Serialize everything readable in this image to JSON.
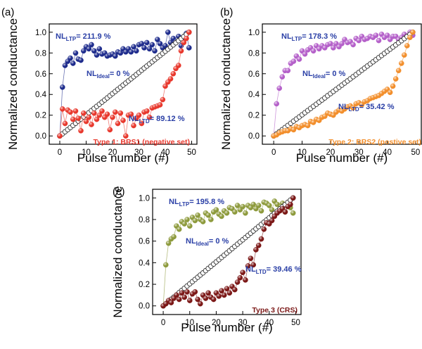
{
  "chart_data": [
    {
      "type": "scatter",
      "panel_label": "(a)",
      "xlabel": "Pulse number (#)",
      "ylabel": "Normalized conductance",
      "xlim": [
        -4,
        52
      ],
      "ylim": [
        -0.08,
        1.08
      ],
      "xticks": [
        0,
        10,
        20,
        30,
        40,
        50
      ],
      "yticks": [
        0.0,
        0.2,
        0.4,
        0.6,
        0.8,
        1.0
      ],
      "ytick_labels": [
        "0.0",
        "0.2",
        "0.4",
        "0.6",
        "0.8",
        "1.0"
      ],
      "grid": false,
      "legend": "none",
      "annotations": {
        "ltp": {
          "prefix": "NL",
          "sub": "LTP",
          "value": "= 211.9 %"
        },
        "ideal": {
          "prefix": "NL",
          "sub": "Ideal",
          "value": "= 0 %"
        },
        "ltd": {
          "prefix": "NL",
          "sub": "LTD",
          "value": "= 89.12 %"
        },
        "type_label": "Type 1: BRS1 (negative set)"
      },
      "series": [
        {
          "key": "ltp",
          "color": "#1d2b8c",
          "x": [
            0,
            1,
            2,
            3,
            4,
            5,
            6,
            7,
            8,
            9,
            10,
            11,
            12,
            13,
            14,
            15,
            16,
            17,
            18,
            19,
            20,
            21,
            22,
            23,
            24,
            25,
            26,
            27,
            28,
            29,
            30,
            31,
            32,
            33,
            34,
            35,
            36,
            37,
            38,
            39,
            40,
            41,
            42,
            43,
            44,
            45,
            46,
            47,
            48,
            49
          ],
          "values": [
            0.0,
            0.47,
            0.68,
            0.72,
            0.75,
            0.7,
            0.8,
            0.74,
            0.73,
            0.82,
            0.86,
            0.84,
            0.88,
            0.82,
            0.78,
            0.84,
            0.79,
            0.8,
            0.77,
            0.78,
            0.79,
            0.77,
            0.81,
            0.8,
            0.84,
            0.81,
            0.84,
            0.81,
            0.86,
            0.82,
            0.88,
            0.89,
            0.85,
            0.9,
            0.84,
            0.88,
            0.82,
            0.93,
            0.89,
            0.85,
            0.87,
            1.0,
            0.9,
            0.94,
            0.91,
            0.96,
            0.87,
            0.93,
            0.99,
            0.85
          ]
        },
        {
          "key": "ideal",
          "color": "#333333",
          "x": [
            0,
            1,
            2,
            3,
            4,
            5,
            6,
            7,
            8,
            9,
            10,
            11,
            12,
            13,
            14,
            15,
            16,
            17,
            18,
            19,
            20,
            21,
            22,
            23,
            24,
            25,
            26,
            27,
            28,
            29,
            30,
            31,
            32,
            33,
            34,
            35,
            36,
            37,
            38,
            39,
            40,
            41,
            42,
            43,
            44,
            45,
            46,
            47,
            48,
            49
          ],
          "values": [
            0.0,
            0.0204,
            0.0408,
            0.0612,
            0.0816,
            0.102,
            0.1224,
            0.1429,
            0.1633,
            0.1837,
            0.2041,
            0.2245,
            0.2449,
            0.2653,
            0.2857,
            0.3061,
            0.3265,
            0.3469,
            0.3673,
            0.3878,
            0.4082,
            0.4286,
            0.449,
            0.4694,
            0.4898,
            0.5102,
            0.5306,
            0.551,
            0.5714,
            0.5918,
            0.6122,
            0.6327,
            0.6531,
            0.6735,
            0.6939,
            0.7143,
            0.7347,
            0.7551,
            0.7755,
            0.7959,
            0.8163,
            0.8367,
            0.8571,
            0.8776,
            0.898,
            0.9184,
            0.9388,
            0.9592,
            0.9796,
            1.0
          ]
        },
        {
          "key": "ltd",
          "color": "#e8372c",
          "x": [
            0,
            1,
            2,
            3,
            4,
            5,
            6,
            7,
            8,
            9,
            10,
            11,
            12,
            13,
            14,
            15,
            16,
            17,
            18,
            19,
            20,
            21,
            22,
            23,
            24,
            25,
            26,
            27,
            28,
            29,
            30,
            31,
            32,
            33,
            34,
            35,
            36,
            37,
            38,
            39,
            40,
            41,
            42,
            43,
            44,
            45,
            46,
            47,
            48,
            49
          ],
          "values": [
            0.0,
            0.26,
            0.12,
            0.25,
            0.23,
            0.16,
            0.24,
            0.17,
            0.05,
            0.22,
            0.14,
            0.18,
            0.11,
            0.22,
            0.16,
            0.2,
            0.24,
            0.18,
            0.21,
            0.06,
            0.18,
            0.23,
            0.12,
            0.22,
            0.15,
            0.0,
            0.2,
            0.21,
            0.1,
            0.17,
            0.2,
            0.12,
            0.23,
            0.24,
            0.18,
            0.27,
            0.28,
            0.29,
            0.3,
            0.35,
            0.48,
            0.52,
            0.55,
            0.6,
            0.65,
            0.68,
            0.82,
            0.9,
            0.94,
            1.0
          ]
        }
      ]
    },
    {
      "type": "scatter",
      "panel_label": "(b)",
      "xlabel": "Pulse number (#)",
      "ylabel": "Normalized conductance",
      "xlim": [
        -4,
        52
      ],
      "ylim": [
        -0.08,
        1.08
      ],
      "xticks": [
        0,
        10,
        20,
        30,
        40,
        50
      ],
      "yticks": [
        0.0,
        0.2,
        0.4,
        0.6,
        0.8,
        1.0
      ],
      "ytick_labels": [
        "0.0",
        "0.2",
        "0.4",
        "0.6",
        "0.8",
        "1.0"
      ],
      "grid": false,
      "legend": "none",
      "annotations": {
        "ltp": {
          "prefix": "NL",
          "sub": "LTP",
          "value": "= 178.3 %"
        },
        "ideal": {
          "prefix": "NL",
          "sub": "Ideal",
          "value": "= 0 %"
        },
        "ltd": {
          "prefix": "NL",
          "sub": "LTD",
          "value": "= 35.42 %"
        },
        "type_label": "Type 2: BRS2 (postive set)"
      },
      "series": [
        {
          "key": "ltp",
          "color": "#b45fc9",
          "x": [
            0,
            1,
            2,
            3,
            4,
            5,
            6,
            7,
            8,
            9,
            10,
            11,
            12,
            13,
            14,
            15,
            16,
            17,
            18,
            19,
            20,
            21,
            22,
            23,
            24,
            25,
            26,
            27,
            28,
            29,
            30,
            31,
            32,
            33,
            34,
            35,
            36,
            37,
            38,
            39,
            40,
            41,
            42,
            43,
            44,
            45,
            46,
            47,
            48,
            49
          ],
          "values": [
            0.0,
            0.31,
            0.46,
            0.57,
            0.63,
            0.63,
            0.7,
            0.72,
            0.77,
            0.74,
            0.82,
            0.79,
            0.83,
            0.85,
            0.82,
            0.87,
            0.84,
            0.87,
            0.85,
            0.88,
            0.89,
            0.85,
            0.89,
            0.86,
            0.89,
            0.93,
            0.9,
            0.91,
            0.88,
            0.94,
            0.92,
            0.96,
            0.93,
            0.94,
            0.96,
            0.95,
            0.97,
            0.92,
            0.98,
            0.95,
            0.97,
            0.93,
            0.96,
            0.96,
            0.93,
            0.95,
            0.98,
            0.96,
            1.0,
            0.97
          ]
        },
        {
          "key": "ideal",
          "color": "#333333",
          "x": [
            0,
            1,
            2,
            3,
            4,
            5,
            6,
            7,
            8,
            9,
            10,
            11,
            12,
            13,
            14,
            15,
            16,
            17,
            18,
            19,
            20,
            21,
            22,
            23,
            24,
            25,
            26,
            27,
            28,
            29,
            30,
            31,
            32,
            33,
            34,
            35,
            36,
            37,
            38,
            39,
            40,
            41,
            42,
            43,
            44,
            45,
            46,
            47,
            48,
            49
          ],
          "values": [
            0.0,
            0.0204,
            0.0408,
            0.0612,
            0.0816,
            0.102,
            0.1224,
            0.1429,
            0.1633,
            0.1837,
            0.2041,
            0.2245,
            0.2449,
            0.2653,
            0.2857,
            0.3061,
            0.3265,
            0.3469,
            0.3673,
            0.3878,
            0.4082,
            0.4286,
            0.449,
            0.4694,
            0.4898,
            0.5102,
            0.5306,
            0.551,
            0.5714,
            0.5918,
            0.6122,
            0.6327,
            0.6531,
            0.6735,
            0.6939,
            0.7143,
            0.7347,
            0.7551,
            0.7755,
            0.7959,
            0.8163,
            0.8367,
            0.8571,
            0.8776,
            0.898,
            0.9184,
            0.9388,
            0.9592,
            0.9796,
            1.0
          ]
        },
        {
          "key": "ltd",
          "color": "#f28e2b",
          "x": [
            0,
            1,
            2,
            3,
            4,
            5,
            6,
            7,
            8,
            9,
            10,
            11,
            12,
            13,
            14,
            15,
            16,
            17,
            18,
            19,
            20,
            21,
            22,
            23,
            24,
            25,
            26,
            27,
            28,
            29,
            30,
            31,
            32,
            33,
            34,
            35,
            36,
            37,
            38,
            39,
            40,
            41,
            42,
            43,
            44,
            45,
            46,
            47,
            48,
            49
          ],
          "values": [
            0.0,
            0.01,
            0.03,
            0.04,
            0.05,
            0.05,
            0.07,
            0.06,
            0.09,
            0.08,
            0.1,
            0.11,
            0.1,
            0.14,
            0.13,
            0.16,
            0.15,
            0.18,
            0.19,
            0.22,
            0.21,
            0.2,
            0.23,
            0.25,
            0.24,
            0.26,
            0.28,
            0.29,
            0.27,
            0.31,
            0.32,
            0.3,
            0.33,
            0.34,
            0.36,
            0.37,
            0.38,
            0.39,
            0.41,
            0.43,
            0.45,
            0.42,
            0.48,
            0.55,
            0.63,
            0.7,
            0.78,
            0.87,
            0.95,
            1.0
          ]
        }
      ]
    },
    {
      "type": "scatter",
      "panel_label": "(c)",
      "xlabel": "Pulse number (#)",
      "ylabel": "Normalized conductance",
      "xlim": [
        -4,
        52
      ],
      "ylim": [
        -0.08,
        1.08
      ],
      "xticks": [
        0,
        10,
        20,
        30,
        40,
        50
      ],
      "yticks": [
        0.0,
        0.2,
        0.4,
        0.6,
        0.8,
        1.0
      ],
      "ytick_labels": [
        "0.0",
        "0.2",
        "0.4",
        "0.6",
        "0.8",
        "1.0"
      ],
      "grid": false,
      "legend": "none",
      "annotations": {
        "ltp": {
          "prefix": "NL",
          "sub": "LTP",
          "value": "= 195.8 %"
        },
        "ideal": {
          "prefix": "NL",
          "sub": "Ideal",
          "value": "= 0 %"
        },
        "ltd": {
          "prefix": "NL",
          "sub": "LTD",
          "value": "= 39.46 %"
        },
        "type_label": "Type 3 (CRS)"
      },
      "series": [
        {
          "key": "ltp",
          "color": "#8d9a3c",
          "x": [
            0,
            1,
            2,
            3,
            4,
            5,
            6,
            7,
            8,
            9,
            10,
            11,
            12,
            13,
            14,
            15,
            16,
            17,
            18,
            19,
            20,
            21,
            22,
            23,
            24,
            25,
            26,
            27,
            28,
            29,
            30,
            31,
            32,
            33,
            34,
            35,
            36,
            37,
            38,
            39,
            40,
            41,
            42,
            43,
            44,
            45,
            46,
            47,
            48,
            49
          ],
          "values": [
            0.0,
            0.38,
            0.58,
            0.62,
            0.64,
            0.74,
            0.71,
            0.78,
            0.76,
            0.8,
            0.74,
            0.82,
            0.79,
            0.84,
            0.8,
            0.78,
            0.86,
            0.84,
            0.8,
            0.87,
            0.89,
            0.85,
            0.83,
            0.88,
            0.86,
            0.91,
            0.9,
            0.87,
            0.93,
            0.89,
            0.92,
            0.86,
            0.93,
            0.91,
            0.94,
            0.9,
            0.93,
            0.88,
            0.96,
            0.95,
            0.93,
            0.89,
            0.97,
            0.94,
            0.9,
            0.95,
            0.87,
            0.93,
            0.91,
            0.86
          ]
        },
        {
          "key": "ideal",
          "color": "#333333",
          "x": [
            0,
            1,
            2,
            3,
            4,
            5,
            6,
            7,
            8,
            9,
            10,
            11,
            12,
            13,
            14,
            15,
            16,
            17,
            18,
            19,
            20,
            21,
            22,
            23,
            24,
            25,
            26,
            27,
            28,
            29,
            30,
            31,
            32,
            33,
            34,
            35,
            36,
            37,
            38,
            39,
            40,
            41,
            42,
            43,
            44,
            45,
            46,
            47,
            48,
            49
          ],
          "values": [
            0.0,
            0.0204,
            0.0408,
            0.0612,
            0.0816,
            0.102,
            0.1224,
            0.1429,
            0.1633,
            0.1837,
            0.2041,
            0.2245,
            0.2449,
            0.2653,
            0.2857,
            0.3061,
            0.3265,
            0.3469,
            0.3673,
            0.3878,
            0.4082,
            0.4286,
            0.449,
            0.4694,
            0.4898,
            0.5102,
            0.5306,
            0.551,
            0.5714,
            0.5918,
            0.6122,
            0.6327,
            0.6531,
            0.6735,
            0.6939,
            0.7143,
            0.7347,
            0.7551,
            0.7755,
            0.7959,
            0.8163,
            0.8367,
            0.8571,
            0.8776,
            0.898,
            0.9184,
            0.9388,
            0.9592,
            0.9796,
            1.0
          ]
        },
        {
          "key": "ltd",
          "color": "#7b1716",
          "x": [
            0,
            1,
            2,
            3,
            4,
            5,
            6,
            7,
            8,
            9,
            10,
            11,
            12,
            13,
            14,
            15,
            16,
            17,
            18,
            19,
            20,
            21,
            22,
            23,
            24,
            25,
            26,
            27,
            28,
            29,
            30,
            31,
            32,
            33,
            34,
            35,
            36,
            37,
            38,
            39,
            40,
            41,
            42,
            43,
            44,
            45,
            46,
            47,
            48,
            49
          ],
          "values": [
            0.0,
            0.02,
            0.05,
            0.03,
            0.07,
            0.1,
            0.06,
            0.12,
            0.08,
            0.13,
            0.05,
            0.11,
            0.13,
            0.06,
            0.02,
            0.1,
            0.07,
            0.12,
            0.08,
            0.06,
            0.12,
            0.09,
            0.14,
            0.1,
            0.16,
            0.12,
            0.18,
            0.15,
            0.22,
            0.26,
            0.31,
            0.24,
            0.37,
            0.44,
            0.38,
            0.52,
            0.56,
            0.62,
            0.71,
            0.77,
            0.76,
            0.79,
            0.83,
            0.86,
            0.88,
            0.9,
            0.87,
            0.92,
            0.94,
            1.0
          ]
        }
      ]
    }
  ]
}
